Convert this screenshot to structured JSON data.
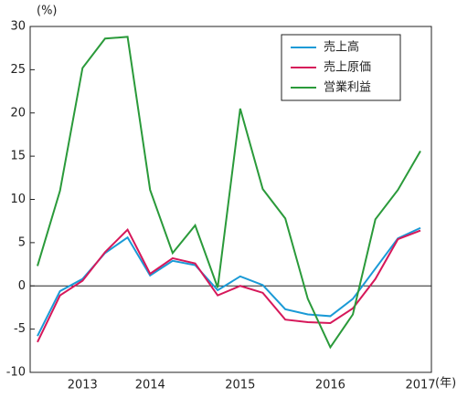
{
  "chart_data": {
    "type": "line",
    "y_unit": "(%)",
    "x_unit": "(年)",
    "categories": [
      null,
      null,
      "2013",
      null,
      null,
      "2014",
      null,
      null,
      null,
      "2015",
      null,
      null,
      null,
      "2016",
      null,
      null,
      null,
      "2017"
    ],
    "series": [
      {
        "name": "売上高",
        "color": "#1a9ad6",
        "values": [
          -5.8,
          -0.6,
          0.8,
          3.8,
          5.6,
          1.2,
          2.9,
          2.4,
          -0.5,
          1.1,
          0.1,
          -2.7,
          -3.3,
          -3.5,
          -1.5,
          2.0,
          5.5,
          6.7
        ]
      },
      {
        "name": "売上原価",
        "color": "#d6185a",
        "values": [
          -6.5,
          -1.1,
          0.6,
          3.9,
          6.5,
          1.4,
          3.2,
          2.6,
          -1.1,
          0.0,
          -0.8,
          -3.9,
          -4.2,
          -4.3,
          -2.6,
          0.8,
          5.4,
          6.4
        ]
      },
      {
        "name": "営業利益",
        "color": "#2a9a3a",
        "values": [
          2.3,
          11.0,
          25.2,
          28.6,
          28.8,
          11.1,
          3.8,
          7.0,
          -0.2,
          20.5,
          11.2,
          7.8,
          -1.5,
          -7.1,
          -3.3,
          7.7,
          11.1,
          15.6
        ]
      }
    ],
    "ylim": [
      -10,
      30
    ],
    "yticks": [
      -10,
      -5,
      0,
      5,
      10,
      15,
      20,
      25,
      30
    ],
    "zero_line": true,
    "legend": "upper right"
  }
}
